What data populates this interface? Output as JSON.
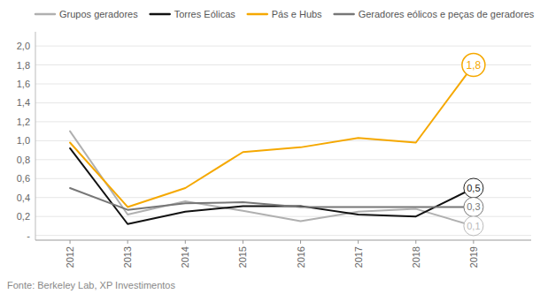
{
  "chart_data": {
    "type": "line",
    "x": [
      2012,
      2013,
      2014,
      2015,
      2016,
      2017,
      2018,
      2019
    ],
    "series": [
      {
        "name": "Grupos geradores",
        "color": "#b0b0b0",
        "values": [
          1.1,
          0.22,
          0.36,
          0.26,
          0.15,
          0.25,
          0.28,
          0.1
        ]
      },
      {
        "name": "Torres Eólicas",
        "color": "#111111",
        "values": [
          0.92,
          0.12,
          0.25,
          0.31,
          0.31,
          0.22,
          0.2,
          0.5
        ]
      },
      {
        "name": "Pás e Hubs",
        "color": "#f5a800",
        "values": [
          0.98,
          0.3,
          0.5,
          0.88,
          0.93,
          1.03,
          0.98,
          1.8
        ]
      },
      {
        "name": "Geradores eólicos e peças de geradores",
        "color": "#777777",
        "values": [
          0.5,
          0.27,
          0.34,
          0.35,
          0.3,
          0.3,
          0.3,
          0.3
        ]
      }
    ],
    "xlim": [
      2011.4,
      2020.0
    ],
    "xticks": [
      2012,
      2013,
      2014,
      2015,
      2016,
      2017,
      2018,
      2019
    ],
    "ylim": [
      -0.05,
      2.15
    ],
    "yticks": [
      {
        "value": 0.0,
        "label": "-"
      },
      {
        "value": 0.2,
        "label": "0,2"
      },
      {
        "value": 0.4,
        "label": "0,4"
      },
      {
        "value": 0.6,
        "label": "0,6"
      },
      {
        "value": 0.8,
        "label": "0,8"
      },
      {
        "value": 1.0,
        "label": "1,0"
      },
      {
        "value": 1.2,
        "label": "1,2"
      },
      {
        "value": 1.4,
        "label": "1,4"
      },
      {
        "value": 1.6,
        "label": "1,6"
      },
      {
        "value": 1.8,
        "label": "1,8"
      },
      {
        "value": 2.0,
        "label": "2,0"
      }
    ],
    "grid": true,
    "legend": "top",
    "annotations": [
      {
        "text": "1,8",
        "x": 2019,
        "y": 1.8,
        "color": "#f5a800"
      },
      {
        "text": "0,5",
        "x": 2019,
        "y": 0.5,
        "color": "#222222"
      },
      {
        "text": "0,3",
        "x": 2019,
        "y": 0.3,
        "color": "#777777"
      },
      {
        "text": "0,1",
        "x": 2019,
        "y": 0.1,
        "color": "#bbbbbb"
      }
    ],
    "source": "Fonte: Berkeley Lab, XP Investimentos"
  }
}
